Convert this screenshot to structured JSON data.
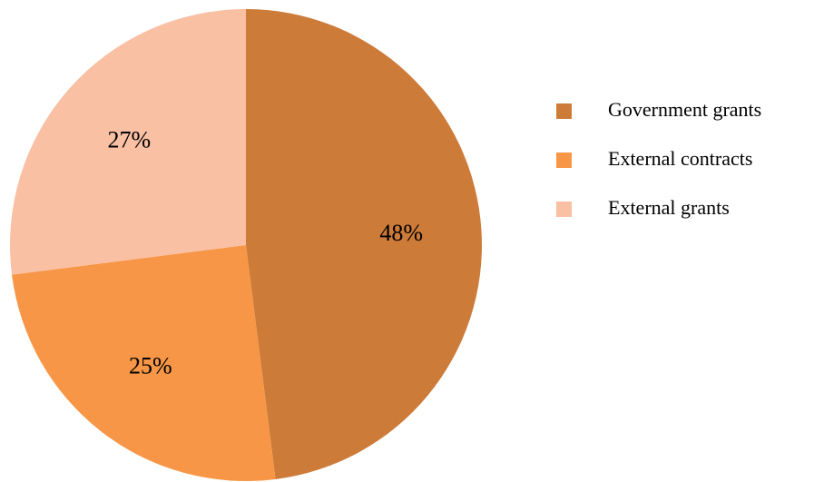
{
  "chart_data": {
    "type": "pie",
    "categories": [
      "Government grants",
      "External contracts",
      "External grants"
    ],
    "values": [
      48,
      25,
      27
    ],
    "value_labels": [
      "48%",
      "25%",
      "27%"
    ],
    "colors": [
      "#cd7b38",
      "#f79646",
      "#f9c0a4"
    ],
    "legend": "right"
  }
}
